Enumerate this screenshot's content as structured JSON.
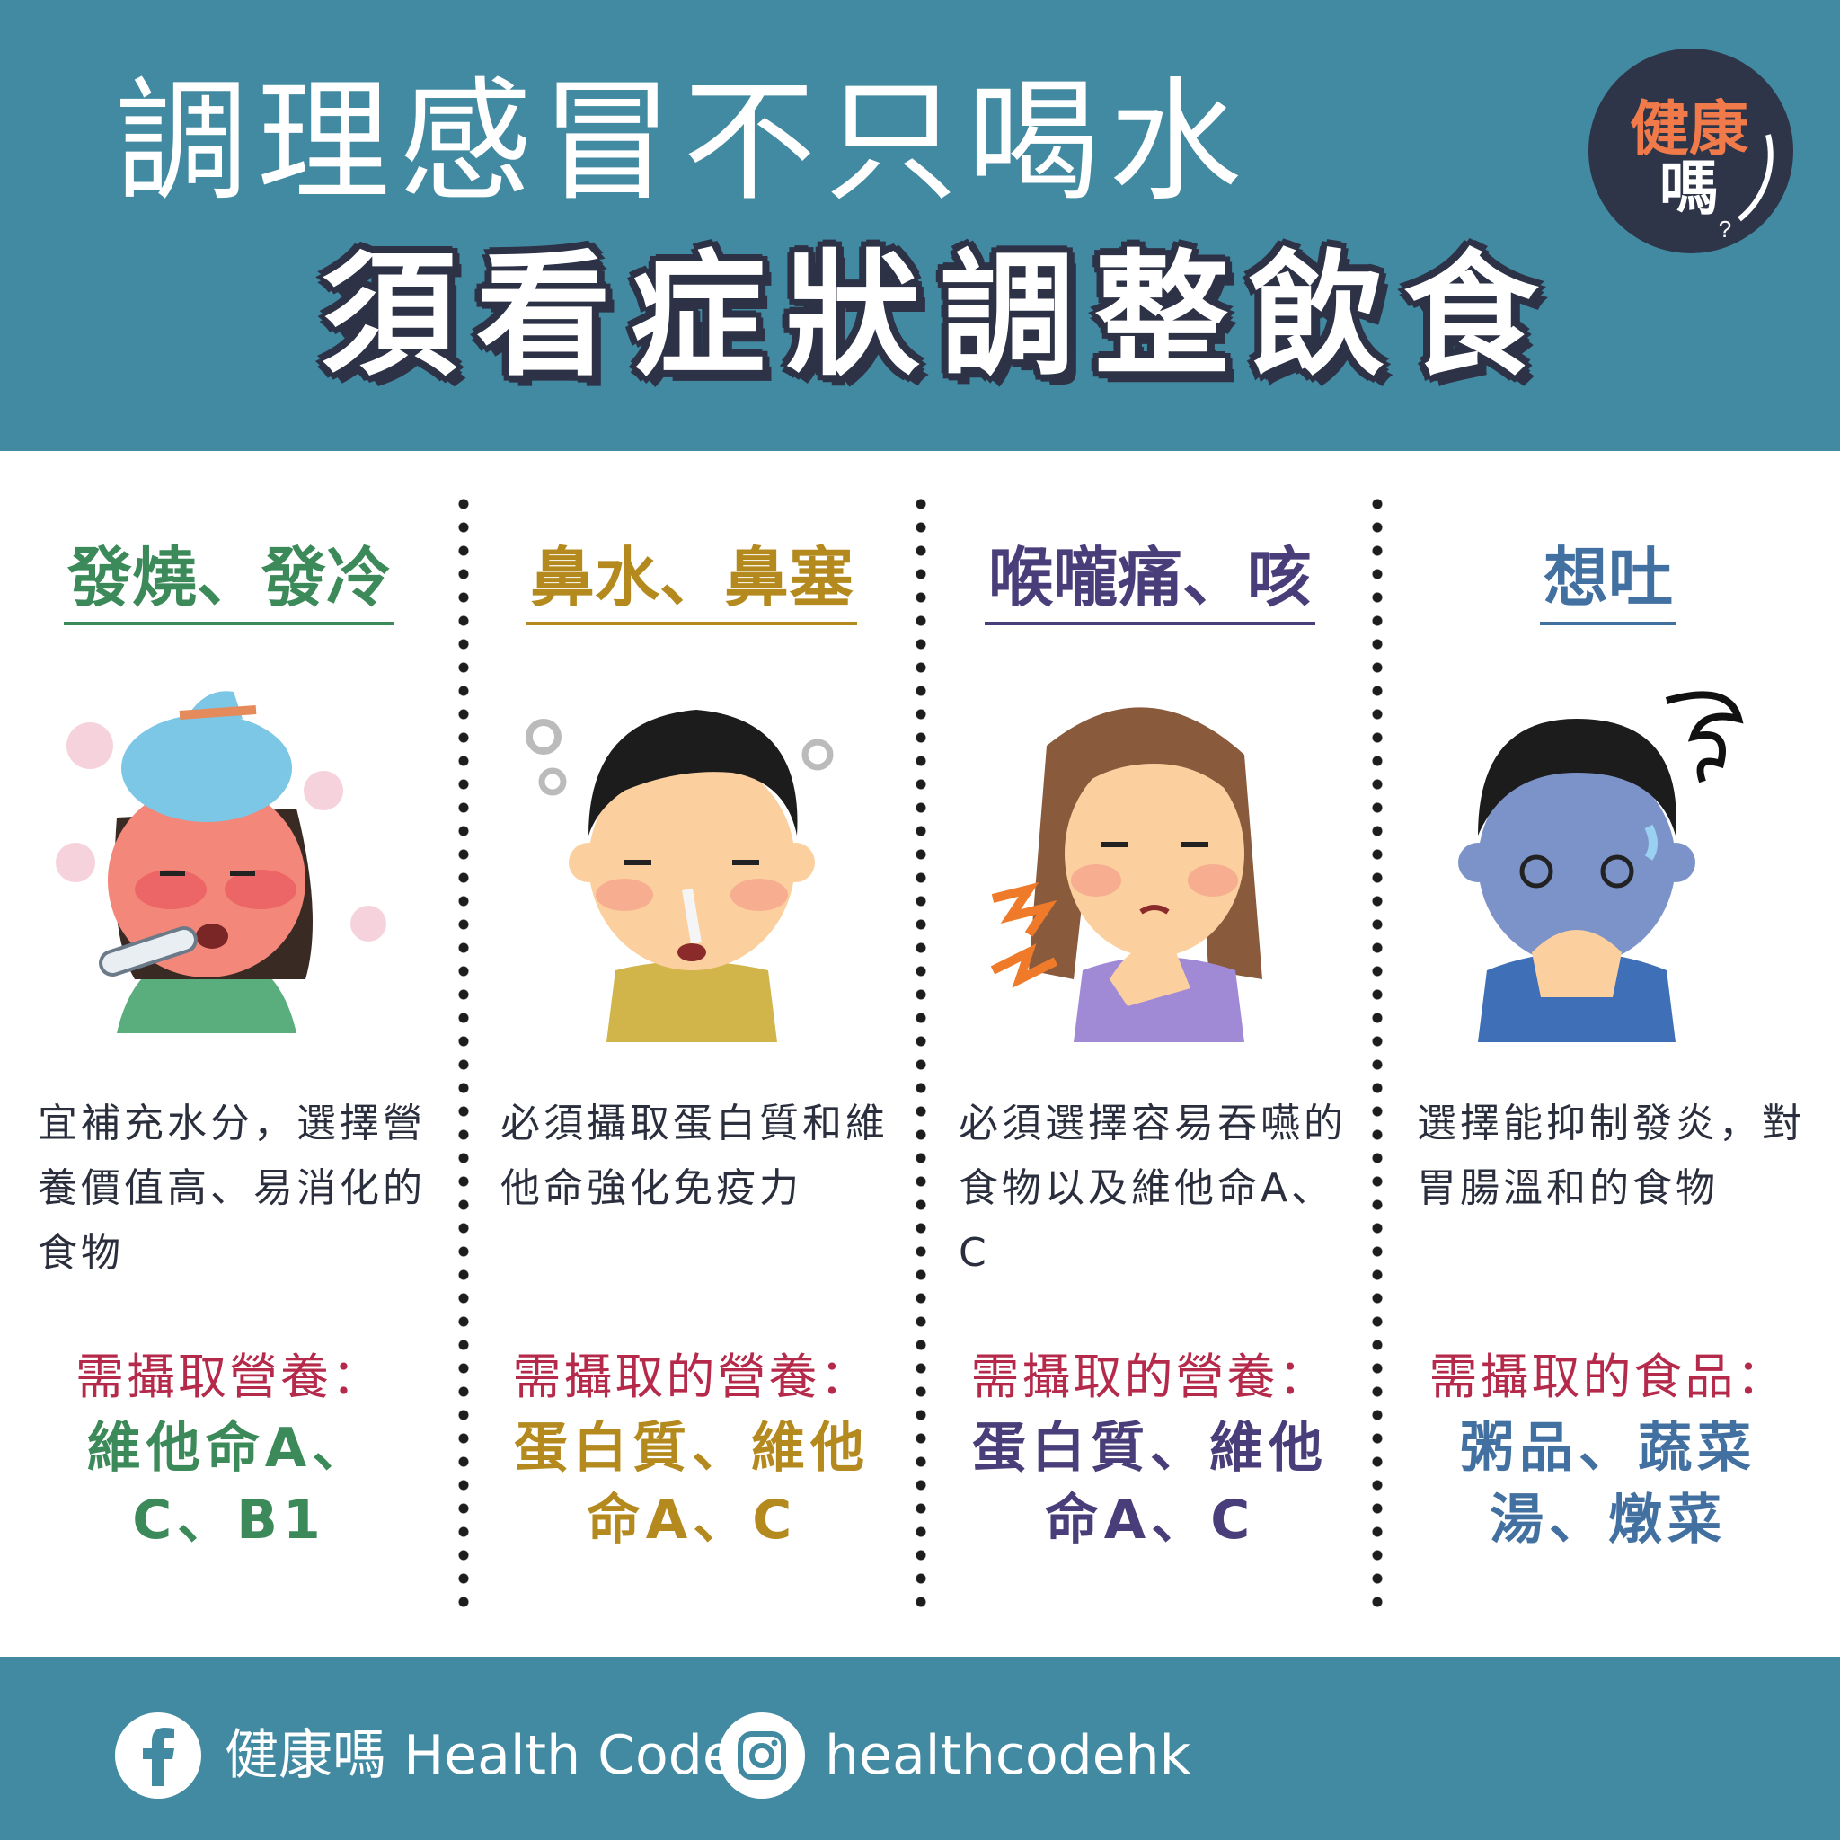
{
  "header": {
    "title_line1": "調理感冒不只喝水",
    "title_line2": "須看症狀調整飲食",
    "logo_line1": "健康",
    "logo_line2": "嗎",
    "logo_mark": "?"
  },
  "columns": [
    {
      "title": "發燒、發冷",
      "illustration": "fever-person-illustration",
      "description": "宜補充水分，選擇營養價值高、易消化的食物",
      "need_label": "需攝取營養：",
      "need_value_line1": "維他命A、",
      "need_value_line2": "C、B1",
      "color": "#3c8a5a"
    },
    {
      "title": "鼻水、鼻塞",
      "illustration": "runny-nose-person-illustration",
      "description": "必須攝取蛋白質和維他命強化免疫力",
      "need_label": "需攝取的營養：",
      "need_value_line1": "蛋白質、維他",
      "need_value_line2": "命A、C",
      "color": "#b48a1f"
    },
    {
      "title": "喉嚨痛、咳",
      "illustration": "sore-throat-person-illustration",
      "description": "必須選擇容易吞嚥的食物以及維他命A、C",
      "need_label": "需攝取的營養：",
      "need_value_line1": "蛋白質、維他",
      "need_value_line2": "命A、C",
      "color": "#4a3e7a"
    },
    {
      "title": "想吐",
      "illustration": "nauseous-person-illustration",
      "description": "選擇能抑制發炎，對胃腸溫和的食物",
      "need_label": "需攝取的食品：",
      "need_value_line1": "粥品、蔬菜",
      "need_value_line2": "湯、燉菜",
      "color": "#4270a0"
    }
  ],
  "footer": {
    "facebook_icon": "facebook-icon",
    "facebook_text": "健康嗎 Health Code",
    "instagram_icon": "instagram-icon",
    "instagram_text": "healthcodehk"
  },
  "colors": {
    "header_bg": "#418aa1",
    "title_shadow": "#2d3247",
    "need_label": "#b5294a",
    "logo_bg": "#2f3549",
    "logo_text": "#f07a4a"
  }
}
